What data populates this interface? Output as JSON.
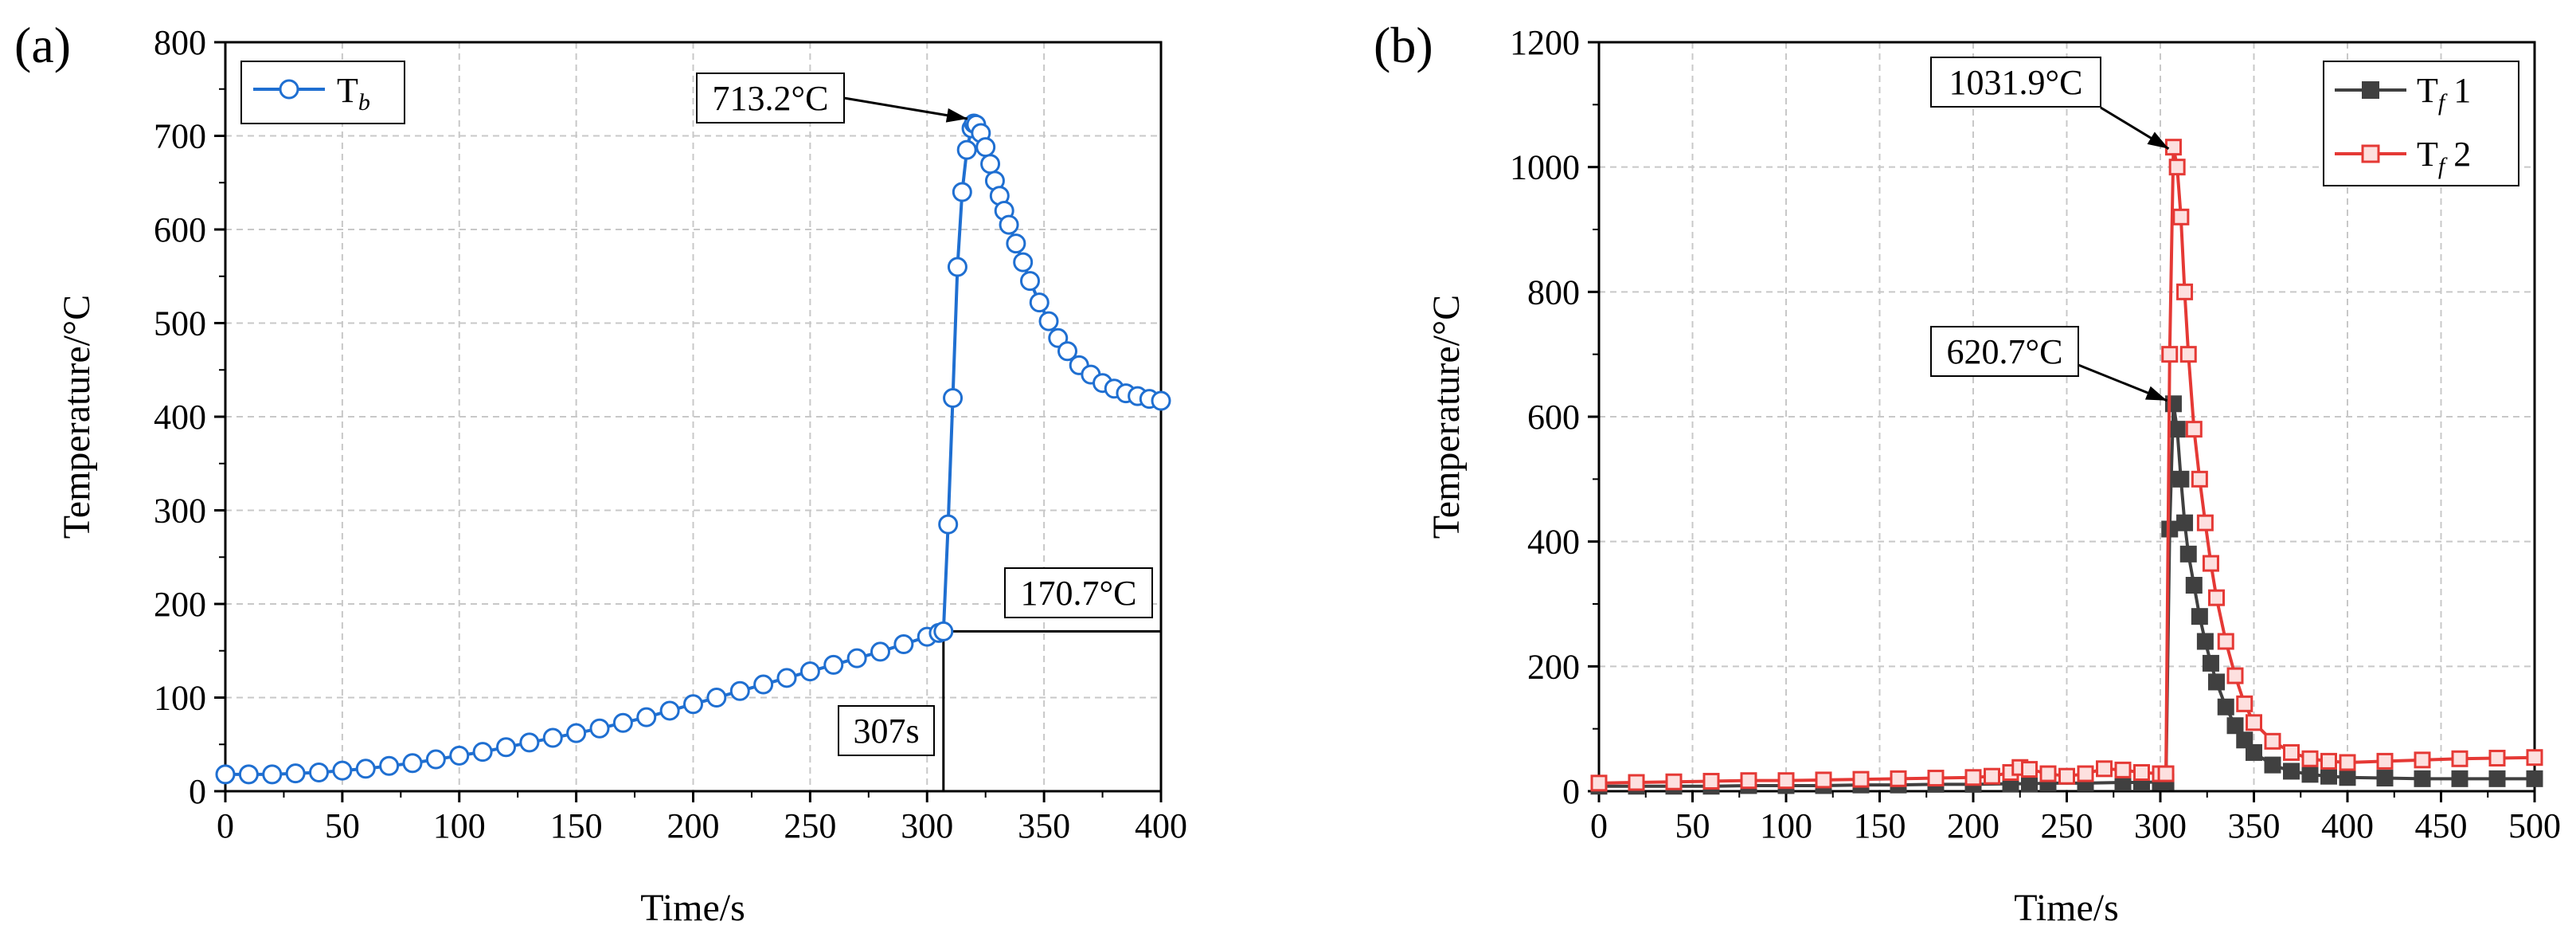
{
  "chart_data": [
    {
      "panel_label": "(a)",
      "type": "line",
      "xlabel": "Time/s",
      "ylabel": "Temperature/°C",
      "xlim": [
        0,
        400
      ],
      "ylim": [
        0,
        800
      ],
      "xticks": [
        "0",
        "50",
        "100",
        "150",
        "200",
        "250",
        "300",
        "350",
        "400"
      ],
      "yticks": [
        "0",
        "100",
        "200",
        "300",
        "400",
        "500",
        "600",
        "700",
        "800"
      ],
      "grid": true,
      "legend_position": "top-left",
      "series": [
        {
          "name": "Tb",
          "legend_main": "T",
          "legend_sub": "b",
          "color": "#1f6fd1",
          "marker": "circle",
          "x": [
            0,
            10,
            20,
            30,
            40,
            50,
            60,
            70,
            80,
            90,
            100,
            110,
            120,
            130,
            140,
            150,
            160,
            170,
            180,
            190,
            200,
            210,
            220,
            230,
            240,
            250,
            260,
            270,
            280,
            290,
            300,
            305,
            307,
            309,
            311,
            313,
            315,
            317,
            319,
            320,
            321,
            323,
            325,
            327,
            329,
            331,
            333,
            335,
            338,
            341,
            344,
            348,
            352,
            356,
            360,
            365,
            370,
            375,
            380,
            385,
            390,
            395,
            400
          ],
          "y": [
            18,
            18,
            18,
            19,
            20,
            22,
            24,
            27,
            30,
            34,
            38,
            42,
            47,
            52,
            57,
            62,
            67,
            73,
            79,
            86,
            93,
            100,
            107,
            114,
            121,
            128,
            135,
            142,
            149,
            157,
            165,
            169,
            170.7,
            285,
            420,
            560,
            640,
            685,
            708,
            713.2,
            712,
            703,
            688,
            670,
            652,
            636,
            620,
            605,
            585,
            565,
            545,
            522,
            502,
            484,
            470,
            455,
            445,
            436,
            430,
            425,
            422,
            419,
            417
          ]
        }
      ],
      "annotations": [
        {
          "text": "713.2°C",
          "x": 320,
          "y": 713.2
        },
        {
          "text": "170.7°C",
          "x": 307,
          "y": 170.7
        },
        {
          "text": "307s",
          "x": 307,
          "y": 0
        }
      ]
    },
    {
      "panel_label": "(b)",
      "type": "line",
      "xlabel": "Time/s",
      "ylabel": "Temperature/°C",
      "xlim": [
        0,
        500
      ],
      "ylim": [
        0,
        1200
      ],
      "xticks": [
        "0",
        "50",
        "100",
        "150",
        "200",
        "250",
        "300",
        "350",
        "400",
        "450",
        "500"
      ],
      "yticks": [
        "0",
        "200",
        "400",
        "600",
        "800",
        "1000",
        "1200"
      ],
      "grid": true,
      "legend_position": "top-right",
      "series": [
        {
          "name": "Tf1",
          "legend_main": "T",
          "legend_sub": "f",
          "legend_suffix": " 1",
          "color": "#404040",
          "marker": "square",
          "x": [
            0,
            20,
            40,
            60,
            80,
            100,
            120,
            140,
            160,
            180,
            200,
            220,
            230,
            240,
            260,
            280,
            290,
            300,
            303,
            305,
            307,
            309,
            311,
            313,
            315,
            318,
            321,
            324,
            327,
            330,
            335,
            340,
            345,
            350,
            360,
            370,
            380,
            390,
            400,
            420,
            440,
            460,
            480,
            500
          ],
          "y": [
            8,
            8,
            8,
            8,
            9,
            9,
            9,
            10,
            10,
            11,
            11,
            12,
            12,
            13,
            13,
            14,
            14,
            15,
            15,
            420,
            620.7,
            580,
            500,
            430,
            380,
            330,
            280,
            240,
            205,
            175,
            135,
            105,
            82,
            62,
            42,
            32,
            27,
            24,
            22,
            21,
            20,
            20,
            20,
            20
          ]
        },
        {
          "name": "Tf2",
          "legend_main": "T",
          "legend_sub": "f",
          "legend_suffix": " 2",
          "color": "#e53935",
          "marker": "square",
          "x": [
            0,
            20,
            40,
            60,
            80,
            100,
            120,
            140,
            160,
            180,
            200,
            210,
            220,
            225,
            230,
            240,
            250,
            260,
            270,
            280,
            290,
            300,
            303,
            305,
            307,
            309,
            311,
            313,
            315,
            318,
            321,
            324,
            327,
            330,
            335,
            340,
            345,
            350,
            360,
            370,
            380,
            390,
            400,
            420,
            440,
            460,
            480,
            500
          ],
          "y": [
            13,
            14,
            15,
            16,
            17,
            17,
            18,
            19,
            20,
            21,
            22,
            24,
            30,
            38,
            35,
            28,
            24,
            28,
            36,
            34,
            30,
            28,
            28,
            700,
            1031.9,
            1000,
            920,
            800,
            700,
            580,
            500,
            430,
            365,
            310,
            240,
            185,
            140,
            110,
            80,
            62,
            52,
            48,
            46,
            48,
            50,
            52,
            53,
            54
          ]
        }
      ],
      "annotations": [
        {
          "text": "1031.9°C",
          "x": 307,
          "y": 1031.9
        },
        {
          "text": "620.7°C",
          "x": 307,
          "y": 620.7
        }
      ]
    }
  ]
}
